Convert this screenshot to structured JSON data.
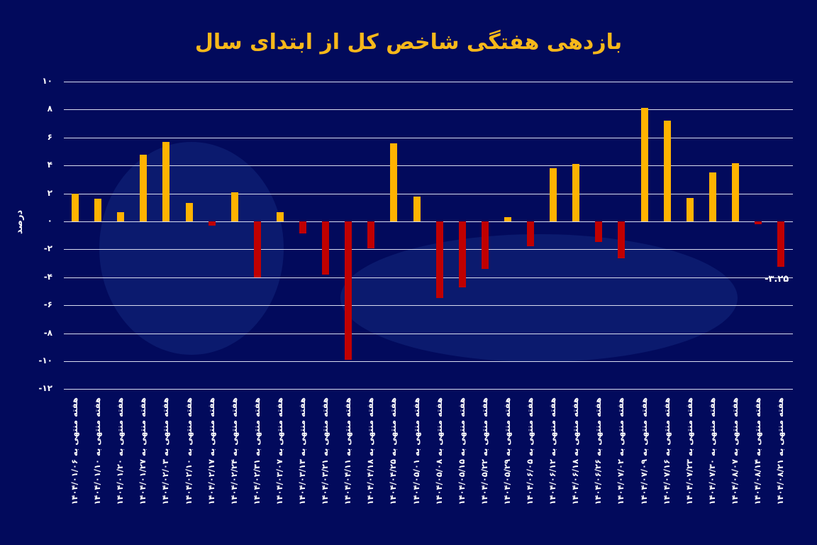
{
  "title": "بازدهی هفتگی شاخص کل از ابتدای سال",
  "colors": {
    "background": "#020a5c",
    "positive": "#ffb300",
    "negative": "#c00000",
    "title": "#f7b81a",
    "grid": "#d9dcef"
  },
  "annotation": "-۳.۲۵",
  "chart_data": {
    "type": "bar",
    "title": "بازدهی هفتگی شاخص کل از ابتدای سال",
    "xlabel": "",
    "ylabel": "درصد",
    "ylim": [
      -12,
      10
    ],
    "yticks": [
      10,
      8,
      6,
      4,
      2,
      0,
      -2,
      -4,
      -6,
      -8,
      -10,
      -12
    ],
    "ytick_labels": [
      "۱۰",
      "۸",
      "۶",
      "۴",
      "۲",
      "۰",
      "-۲",
      "-۴",
      "-۶",
      "-۸",
      "-۱۰",
      "-۱۲"
    ],
    "grid": true,
    "legend": "none",
    "categories": [
      "هفته منتهی به ۱۴۰۴/۰۱/۰۶",
      "هفته منتهی به ۱۴۰۴/۰۱/۱۰",
      "هفته منتهی به ۱۴۰۴/۰۱/۲۰",
      "هفته منتهی به ۱۴۰۴/۰۱/۲۷",
      "هفته منتهی به ۱۴۰۴/۰۲/۰۳",
      "هفته منتهی به ۱۴۰۴/۰۲/۱۰",
      "هفته منتهی به ۱۴۰۴/۰۲/۱۷",
      "هفته منتهی به ۱۴۰۴/۰۲/۲۴",
      "هفته منتهی به ۱۴۰۴/۰۲/۳۱",
      "هفته منتهی به ۱۴۰۴/۰۳/۰۷",
      "هفته منتهی به ۱۴۰۴/۰۳/۱۳",
      "هفته منتهی به ۱۴۰۴/۰۳/۲۱",
      "هفته منتهی به ۱۴۰۴/۰۴/۱۱",
      "هفته منتهی به ۱۴۰۴/۰۴/۱۸",
      "هفته منتهی به ۱۴۰۴/۰۴/۲۵",
      "هفته منتهی به ۱۴۰۴/۰۵/۰۱",
      "هفته منتهی به ۱۴۰۴/۰۵/۰۸",
      "هفته منتهی به ۱۴۰۴/۰۵/۱۵",
      "هفته منتهی به ۱۴۰۴/۰۵/۲۲",
      "هفته منتهی به ۱۴۰۴/۰۵/۲۹",
      "هفته منتهی به ۱۴۰۴/۰۶/۰۵",
      "هفته منتهی به ۱۴۰۴/۰۶/۱۲",
      "هفته منتهی به ۱۴۰۴/۰۶/۱۸",
      "هفته منتهی به ۱۴۰۴/۰۶/۲۶",
      "هفته منتهی به ۱۴۰۴/۰۷/۰۲",
      "هفته منتهی به ۱۴۰۴/۰۷/۰۹",
      "هفته منتهی به ۱۴۰۴/۰۷/۱۶",
      "هفته منتهی به ۱۴۰۴/۰۷/۲۳",
      "هفته منتهی به ۱۴۰۴/۰۷/۳۰",
      "هفته منتهی به ۱۴۰۴/۰۸/۰۷",
      "هفته منتهی به ۱۴۰۴/۰۸/۱۴",
      "هفته منتهی به ۱۴۰۴/۰۸/۲۱"
    ],
    "values": [
      2.0,
      1.6,
      0.65,
      4.75,
      5.7,
      1.3,
      -0.3,
      2.1,
      -4.0,
      0.65,
      -0.85,
      -3.8,
      -9.9,
      -1.95,
      5.6,
      1.8,
      -5.5,
      -4.7,
      -3.4,
      0.3,
      -1.8,
      3.8,
      4.1,
      -1.45,
      -2.65,
      8.1,
      7.2,
      1.65,
      3.5,
      4.15,
      -0.2,
      -3.25
    ],
    "annotations": [
      {
        "index": 31,
        "text": "-۳.۲۵"
      }
    ]
  }
}
